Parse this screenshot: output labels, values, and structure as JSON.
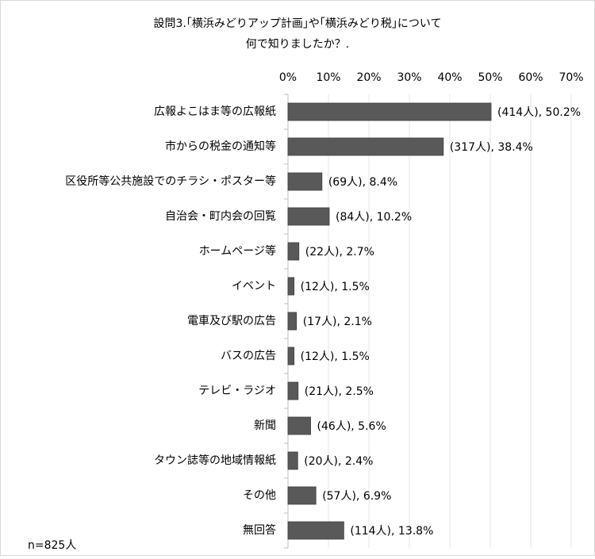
{
  "chart_data": {
    "type": "bar",
    "orientation": "horizontal",
    "title": [
      "設問3.｢横浜みどりアップ計画｣や｢横浜みどり税｣について",
      "何で知りましたか？."
    ],
    "categories": [
      "広報よこはま等の広報紙",
      "市からの税金の通知等",
      "区役所等公共施設でのチラシ・ポスター等",
      "自治会・町内会の回覧",
      "ホームページ等",
      "イベント",
      "電車及び駅の広告",
      "バスの広告",
      "テレビ・ラジオ",
      "新聞",
      "タウン誌等の地域情報紙",
      "その他",
      "無回答"
    ],
    "values": [
      50.2,
      38.4,
      8.4,
      10.2,
      2.7,
      1.5,
      2.1,
      1.5,
      2.5,
      5.6,
      2.4,
      6.9,
      13.8
    ],
    "value_labels": [
      "(414人), 50.2%",
      "(317人), 38.4%",
      "(69人), 8.4%",
      "(84人), 10.2%",
      "(22人), 2.7%",
      "(12人), 1.5%",
      "(17人), 2.1%",
      "(12人), 1.5%",
      "(21人), 2.5%",
      "(46人), 5.6%",
      "(20人), 2.4%",
      "(57人), 6.9%",
      "(114人), 13.8%"
    ],
    "color": "#595959",
    "xlim": [
      0,
      70
    ],
    "xticks": [
      {
        "value": 0,
        "label": "0%"
      },
      {
        "value": 10,
        "label": "10%"
      },
      {
        "value": 20,
        "label": "20%"
      },
      {
        "value": 30,
        "label": "30%"
      },
      {
        "value": 40,
        "label": "40%"
      },
      {
        "value": 50,
        "label": "50%"
      },
      {
        "value": 60,
        "label": "60%"
      },
      {
        "value": 70,
        "label": "70%"
      }
    ],
    "grid": true,
    "note": "n=825人"
  }
}
